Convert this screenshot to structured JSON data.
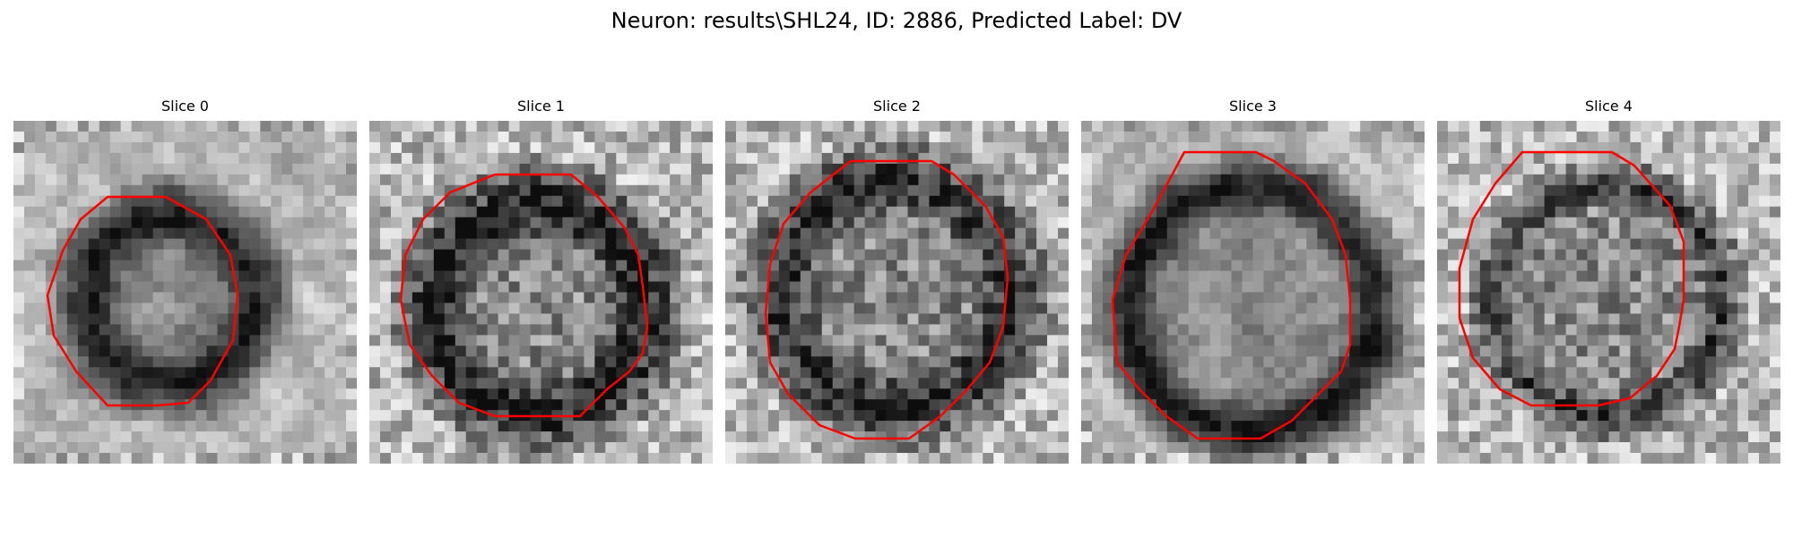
{
  "figure": {
    "title": "Neuron: results\\SHL24, ID: 2886, Predicted Label: DV",
    "contour_color": "#ff0000"
  },
  "slices": [
    {
      "title": "Slice 0"
    },
    {
      "title": "Slice 1"
    },
    {
      "title": "Slice 2"
    },
    {
      "title": "Slice 3"
    },
    {
      "title": "Slice 4"
    }
  ]
}
